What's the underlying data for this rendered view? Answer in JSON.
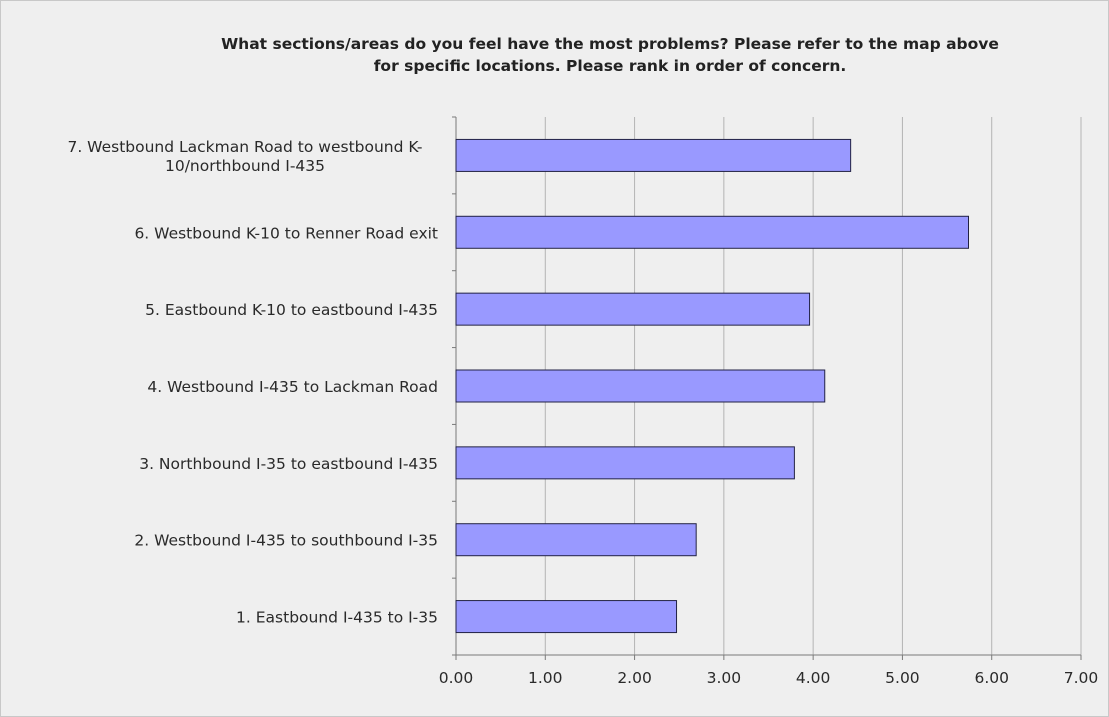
{
  "chart_data": {
    "type": "bar",
    "orientation": "horizontal",
    "title_lines": [
      "What sections/areas do you feel have the most problems?  Please refer to the map above",
      "for specific locations.  Please rank in order of concern."
    ],
    "categories": [
      [
        "1.  Eastbound I-435 to I-35"
      ],
      [
        "2.  Westbound I-435 to southbound I-35"
      ],
      [
        "3.  Northbound I-35  to eastbound I-435"
      ],
      [
        "4.  Westbound I-435 to Lackman Road"
      ],
      [
        "5.  Eastbound K-10  to eastbound I-435"
      ],
      [
        "6.  Westbound K-10 to Renner Road exit"
      ],
      [
        "7.  Westbound Lackman Road to westbound K-",
        "10/northbound I-435"
      ]
    ],
    "values": [
      2.47,
      2.69,
      3.79,
      4.13,
      3.96,
      5.74,
      4.42
    ],
    "xlim": [
      0,
      7
    ],
    "xticks": [
      "0.00",
      "1.00",
      "2.00",
      "3.00",
      "4.00",
      "5.00",
      "6.00",
      "7.00"
    ],
    "xlabel": "",
    "ylabel": "",
    "grid": "vertical",
    "legend": "none",
    "colors": {
      "bar_fill": "#9999ff",
      "bar_stroke": "#222244",
      "background": "#efefef",
      "gridline": "#b4b4b4",
      "axis": "#7a7a7a"
    }
  }
}
